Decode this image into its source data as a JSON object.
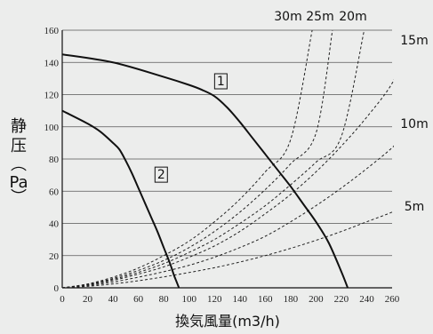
{
  "chart_data": {
    "type": "line",
    "xlabel": "換気風量(m3/h)",
    "ylabel": [
      "静",
      "压",
      "（",
      "Pa",
      "）"
    ],
    "xlim": [
      0,
      260
    ],
    "ylim": [
      0,
      160
    ],
    "x_ticks": [
      "0",
      "20",
      "40",
      "60",
      "80",
      "100",
      "120",
      "140",
      "160",
      "180",
      "200",
      "220",
      "240",
      "260"
    ],
    "y_ticks": [
      "0",
      "20",
      "40",
      "60",
      "80",
      "100",
      "120",
      "140",
      "160"
    ],
    "grid": "horizontal",
    "series": [
      {
        "name": "1",
        "style": "solid",
        "x": [
          0,
          40,
          80,
          100,
          110,
          120,
          130,
          140,
          150,
          160,
          170,
          180,
          190,
          200,
          210,
          220,
          225
        ],
        "y": [
          145,
          140,
          131,
          126,
          123,
          119,
          112,
          103,
          93,
          83,
          73,
          63,
          52,
          41,
          28,
          10,
          0
        ]
      },
      {
        "name": "2",
        "style": "solid",
        "x": [
          0,
          20,
          30,
          40,
          45,
          50,
          55,
          60,
          65,
          70,
          75,
          80,
          85,
          88,
          90,
          92
        ],
        "y": [
          110,
          102,
          97,
          90,
          86,
          79,
          71,
          62,
          53,
          44,
          35,
          25,
          15,
          8,
          4,
          0
        ]
      }
    ],
    "duct_curves": [
      {
        "name": "30m",
        "style": "dashed",
        "x": [
          0,
          20,
          40,
          60,
          80,
          100,
          120,
          140,
          160,
          180,
          197
        ],
        "y": [
          0,
          2.4,
          6.6,
          12.3,
          20,
          29,
          41,
          55,
          72,
          92,
          160
        ]
      },
      {
        "name": "25m",
        "style": "dashed",
        "x": [
          0,
          20,
          40,
          60,
          80,
          100,
          120,
          140,
          160,
          180,
          200,
          213
        ],
        "y": [
          0,
          2.1,
          5.8,
          10.8,
          17,
          25,
          35,
          47,
          61,
          77,
          96,
          160
        ]
      },
      {
        "name": "20m",
        "style": "dashed",
        "x": [
          0,
          20,
          40,
          60,
          80,
          100,
          120,
          140,
          160,
          180,
          200,
          220,
          238
        ],
        "y": [
          0,
          1.9,
          5.2,
          9.6,
          15,
          22,
          30,
          40,
          51,
          64,
          78,
          94,
          160
        ]
      },
      {
        "name": "15m",
        "style": "dashed",
        "x": [
          0,
          20,
          40,
          60,
          80,
          100,
          120,
          140,
          160,
          180,
          200,
          220,
          240,
          260,
          270
        ],
        "y": [
          0,
          1.7,
          4.6,
          8.5,
          13,
          19,
          26,
          35,
          46,
          58,
          72,
          88,
          106,
          127,
          147
        ]
      },
      {
        "name": "10m",
        "style": "dashed",
        "x": [
          0,
          20,
          40,
          60,
          80,
          100,
          120,
          140,
          160,
          180,
          200,
          220,
          240,
          260,
          270
        ],
        "y": [
          0,
          1.3,
          3.6,
          6.6,
          10,
          14,
          19,
          25,
          32,
          41,
          51,
          62,
          74,
          87,
          96
        ]
      },
      {
        "name": "5m",
        "style": "dashed",
        "x": [
          0,
          20,
          40,
          60,
          80,
          100,
          120,
          140,
          160,
          180,
          200,
          220,
          240,
          260,
          270
        ],
        "y": [
          0,
          0.9,
          2.4,
          4.4,
          6.8,
          9.5,
          12.5,
          16,
          20,
          24.5,
          29.5,
          35,
          41,
          47,
          51
        ]
      }
    ],
    "annotations": [
      {
        "text": "1",
        "boxed": true,
        "x": 125,
        "y": 128
      },
      {
        "text": "2",
        "boxed": true,
        "x": 78,
        "y": 70
      }
    ],
    "duct_labels_top": [
      "30m",
      "25m",
      "20m"
    ],
    "duct_labels_right": [
      "15m",
      "10m",
      "5m"
    ]
  }
}
